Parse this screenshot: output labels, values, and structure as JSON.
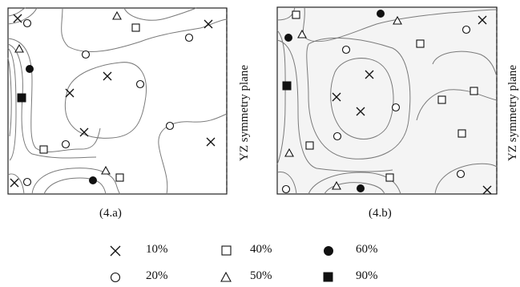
{
  "panels": [
    {
      "caption": "(4.a)",
      "side_label": "YZ symmetry plane"
    },
    {
      "caption": "(4.b)",
      "side_label": "YZ symmetry plane"
    }
  ],
  "legend": [
    {
      "symbol": "cross",
      "label": "10%"
    },
    {
      "symbol": "square-open",
      "label": "40%"
    },
    {
      "symbol": "circle-filled",
      "label": "60%"
    },
    {
      "symbol": "circle-open",
      "label": "20%"
    },
    {
      "symbol": "triangle-open",
      "label": "50%"
    },
    {
      "symbol": "square-filled",
      "label": "90%"
    }
  ]
}
